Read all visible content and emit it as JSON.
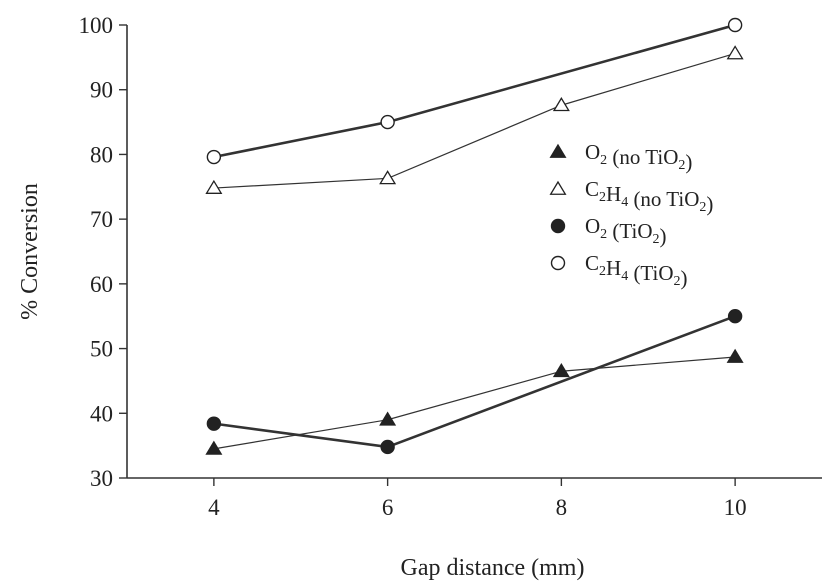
{
  "chart_data": {
    "type": "line",
    "title": "",
    "xlabel": "Gap distance (mm)",
    "ylabel": "% Conversion",
    "xlim": [
      3,
      11
    ],
    "ylim": [
      30,
      100
    ],
    "x_ticks": [
      "4",
      "6",
      "8",
      "10"
    ],
    "y_ticks": [
      "30",
      "40",
      "50",
      "60",
      "70",
      "80",
      "90",
      "100"
    ],
    "grid": false,
    "legend_position": "right-center",
    "series": [
      {
        "name": "O2 (no TiO2)",
        "legend_parts": [
          [
            "O",
            ""
          ],
          [
            "2",
            "sub"
          ],
          [
            " (no TiO",
            ""
          ],
          [
            "2",
            "sub"
          ],
          [
            ")",
            ""
          ]
        ],
        "marker": "triangle-filled",
        "line": "thin",
        "x": [
          4,
          6,
          8,
          10
        ],
        "y": [
          34.5,
          39,
          46.5,
          48.7
        ]
      },
      {
        "name": "C2H4 (no TiO2)",
        "legend_parts": [
          [
            "C",
            ""
          ],
          [
            "2",
            "sub"
          ],
          [
            "H",
            ""
          ],
          [
            "4",
            "sub"
          ],
          [
            " (no TiO",
            ""
          ],
          [
            "2",
            "sub"
          ],
          [
            ")",
            ""
          ]
        ],
        "marker": "triangle-open",
        "line": "thin",
        "x": [
          4,
          6,
          8,
          10
        ],
        "y": [
          74.8,
          76.3,
          87.6,
          95.6
        ]
      },
      {
        "name": "O2 (TiO2)",
        "legend_parts": [
          [
            "O",
            ""
          ],
          [
            "2",
            "sub"
          ],
          [
            " (TiO",
            ""
          ],
          [
            "2",
            "sub"
          ],
          [
            ")",
            ""
          ]
        ],
        "marker": "circle-filled",
        "line": "thick",
        "x": [
          4,
          6,
          10
        ],
        "y": [
          38.4,
          34.8,
          55
        ]
      },
      {
        "name": "C2H4 (TiO2)",
        "legend_parts": [
          [
            "C",
            ""
          ],
          [
            "2",
            "sub"
          ],
          [
            "H",
            ""
          ],
          [
            "4",
            "sub"
          ],
          [
            " (TiO",
            ""
          ],
          [
            "2",
            "sub"
          ],
          [
            ")",
            ""
          ]
        ],
        "marker": "circle-open",
        "line": "thick",
        "x": [
          4,
          6,
          10
        ],
        "y": [
          79.6,
          85,
          100
        ]
      }
    ]
  }
}
